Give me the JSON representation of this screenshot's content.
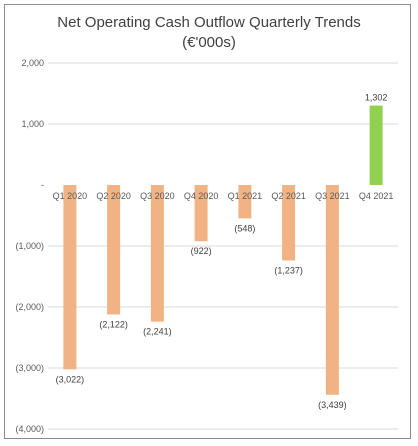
{
  "chart_data": {
    "type": "bar",
    "title": "Net Operating Cash Outflow Quarterly Trends",
    "subtitle": "(€'000s)",
    "categories": [
      "Q1 2020",
      "Q2 2020",
      "Q3 2020",
      "Q4 2020",
      "Q1 2021",
      "Q2 2021",
      "Q3 2021",
      "Q4 2021"
    ],
    "values": [
      -3022,
      -2122,
      -2241,
      -922,
      -548,
      -1237,
      -3439,
      1302
    ],
    "data_labels": [
      "(3,022)",
      "(2,122)",
      "(2,241)",
      "(922)",
      "(548)",
      "(1,237)",
      "(3,439)",
      "1,302"
    ],
    "ylim": [
      -4000,
      2000
    ],
    "y_ticks": [
      {
        "value": 2000,
        "label": "2,000"
      },
      {
        "value": 1000,
        "label": "1,000"
      },
      {
        "value": 0,
        "label": "-"
      },
      {
        "value": -1000,
        "label": "(1,000)"
      },
      {
        "value": -2000,
        "label": "(2,000)"
      },
      {
        "value": -3000,
        "label": "(3,000)"
      },
      {
        "value": -4000,
        "label": "(4,000)"
      }
    ],
    "grid": true,
    "legend": "none",
    "colors": {
      "negative": "#F1B383",
      "positive": "#92D050",
      "grid": "#D9D9D9"
    }
  }
}
